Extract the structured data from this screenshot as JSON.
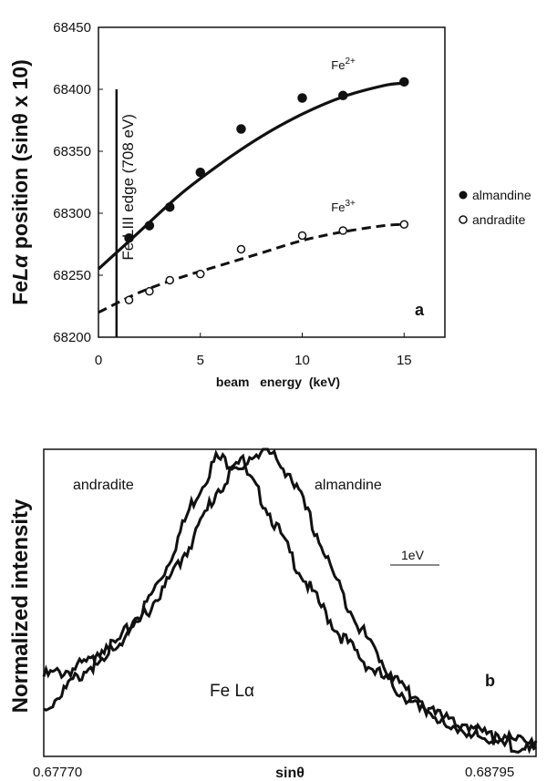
{
  "chart_data": [
    {
      "type": "scatter",
      "panel_label": "a",
      "xlabel": "beam   energy  (keV)",
      "ylabel_prefix": "Fe",
      "ylabel_italic": "Lα",
      "ylabel_suffix": " position (sinθ x 10)",
      "xlim": [
        0,
        17
      ],
      "ylim": [
        68200,
        68450
      ],
      "x_ticks": [
        0,
        5,
        10,
        15
      ],
      "y_ticks": [
        68200,
        68250,
        68300,
        68350,
        68400,
        68450
      ],
      "edge_line": {
        "x": 0.708,
        "label": "Fe LIII edge (708 eV)"
      },
      "legend_position": "right",
      "series": [
        {
          "name": "almandine",
          "marker": "filled-circle",
          "fit_label_base": "Fe",
          "fit_label_sup": "2+",
          "x": [
            1.5,
            2.5,
            3.5,
            5,
            7,
            10,
            12,
            15
          ],
          "y": [
            68280,
            68290,
            68305,
            68333,
            68368,
            68393,
            68395,
            68406
          ],
          "fit": {
            "x": [
              0,
              2,
              4,
              6,
              8,
              10,
              12,
              14,
              15
            ],
            "y": [
              68255,
              68285,
              68315,
              68340,
              68362,
              68380,
              68394,
              68403,
              68405
            ],
            "style": "solid"
          }
        },
        {
          "name": "andradite",
          "marker": "open-circle",
          "fit_label_base": "Fe",
          "fit_label_sup": "3+",
          "x": [
            1.5,
            2.5,
            3.5,
            5,
            7,
            10,
            12,
            15
          ],
          "y": [
            68230,
            68237,
            68246,
            68251,
            68271,
            68282,
            68286,
            68291
          ],
          "fit": {
            "x": [
              0,
              2,
              4,
              6,
              8,
              10,
              12,
              14,
              15
            ],
            "y": [
              68220,
              68236,
              68248,
              68258,
              68268,
              68278,
              68285,
              68290,
              68291
            ],
            "style": "dashed"
          }
        }
      ]
    },
    {
      "type": "line",
      "panel_label": "b",
      "xlabel": "sinθ",
      "ylabel": "Normalized intensity",
      "x_tick_labels": [
        "0.67770",
        "0.68795"
      ],
      "annotation": "Fe Lα",
      "scale_bar_label": "1eV",
      "series": [
        {
          "name": "andradite",
          "x": [
            0.0,
            0.05,
            0.1,
            0.15,
            0.2,
            0.25,
            0.3,
            0.35,
            0.4,
            0.45,
            0.5,
            0.55,
            0.6,
            0.65,
            0.7,
            0.75,
            0.8,
            0.85,
            0.9,
            0.95,
            1.0
          ],
          "y": [
            0.26,
            0.28,
            0.31,
            0.37,
            0.47,
            0.62,
            0.82,
            0.97,
            0.95,
            0.82,
            0.66,
            0.52,
            0.4,
            0.31,
            0.24,
            0.18,
            0.13,
            0.09,
            0.07,
            0.05,
            0.04
          ]
        },
        {
          "name": "almandine",
          "x": [
            0.0,
            0.05,
            0.1,
            0.15,
            0.2,
            0.25,
            0.3,
            0.35,
            0.4,
            0.45,
            0.5,
            0.55,
            0.6,
            0.65,
            0.7,
            0.75,
            0.8,
            0.85,
            0.9,
            0.95,
            1.0
          ],
          "y": [
            0.15,
            0.23,
            0.3,
            0.37,
            0.45,
            0.56,
            0.7,
            0.86,
            0.96,
            1.0,
            0.92,
            0.74,
            0.55,
            0.4,
            0.28,
            0.19,
            0.13,
            0.09,
            0.06,
            0.04,
            0.03
          ]
        }
      ]
    }
  ]
}
